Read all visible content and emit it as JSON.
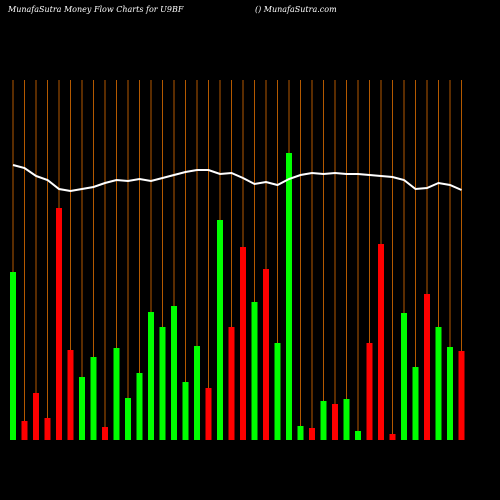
{
  "chart_data": {
    "type": "bar",
    "title": "MunafaSutra  Money Flow  Charts for U9BF",
    "subtitle": "() MunafaSutra.com",
    "categories": [
      null,
      null,
      null,
      null,
      null,
      null,
      null,
      null,
      null,
      null,
      null,
      null,
      null,
      null,
      null,
      null,
      null,
      null,
      null,
      null,
      null,
      null,
      null,
      null,
      null,
      null,
      null,
      null,
      null,
      null,
      null,
      null,
      null,
      null,
      null,
      null,
      null,
      null,
      null,
      null
    ],
    "values": [
      168,
      19,
      47,
      22,
      232,
      90,
      63,
      83,
      13,
      92,
      42,
      67,
      128,
      113,
      134,
      58,
      94,
      52,
      220,
      113,
      193,
      138,
      171,
      97,
      287,
      14,
      12,
      39,
      36,
      41,
      9,
      97,
      196,
      6,
      127,
      73,
      146,
      113,
      93,
      89
    ],
    "colors": [
      "#00ff00",
      "#ff0000",
      "#ff0000",
      "#ff0000",
      "#ff0000",
      "#ff0000",
      "#00ff00",
      "#00ff00",
      "#ff0000",
      "#00ff00",
      "#00ff00",
      "#00ff00",
      "#00ff00",
      "#00ff00",
      "#00ff00",
      "#00ff00",
      "#00ff00",
      "#ff0000",
      "#00ff00",
      "#ff0000",
      "#ff0000",
      "#00ff00",
      "#ff0000",
      "#00ff00",
      "#00ff00",
      "#00ff00",
      "#ff0000",
      "#00ff00",
      "#ff0000",
      "#00ff00",
      "#00ff00",
      "#ff0000",
      "#ff0000",
      "#ff0000",
      "#00ff00",
      "#00ff00",
      "#ff0000",
      "#00ff00",
      "#00ff00",
      "#ff0000"
    ],
    "line_color": "#ffffff",
    "line_values": [
      275,
      272,
      264,
      260,
      251,
      249,
      251,
      253,
      257,
      260,
      259,
      261,
      259,
      262,
      265,
      268,
      270,
      270,
      266,
      267,
      262,
      256,
      258,
      255,
      261,
      265,
      267,
      266,
      267,
      266,
      266,
      265,
      264,
      263,
      260,
      251,
      252,
      257,
      255,
      250
    ],
    "grid_color": "#b35900",
    "ylim": [
      0,
      360
    ]
  }
}
